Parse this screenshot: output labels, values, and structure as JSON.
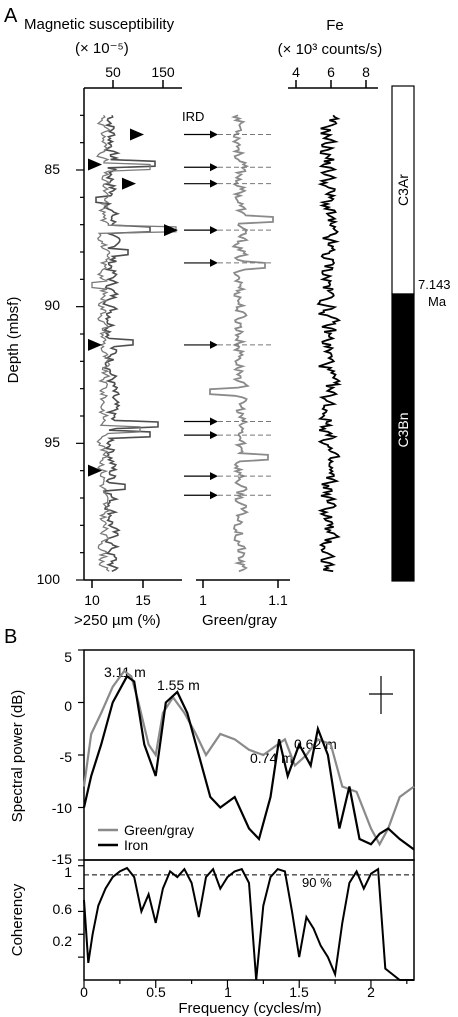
{
  "panel_a": {
    "label": "A",
    "mag_title": "Magnetic susceptibility",
    "mag_unit": "(× 10⁻⁵)",
    "mag_ticks": [
      "50",
      "150"
    ],
    "fe_title": "Fe",
    "fe_unit": "(× 10³ counts/s)",
    "fe_ticks": [
      "4",
      "6",
      "8"
    ],
    "depth_label": "Depth (mbsf)",
    "depth_ticks": [
      "85",
      "90",
      "95",
      "100"
    ],
    "ird_label": "IRD",
    "coarse_label": ">250 µm (%)",
    "coarse_ticks": [
      "10",
      "15"
    ],
    "greengray_label": "Green/gray",
    "greengray_ticks": [
      "1",
      "1.1"
    ],
    "chron_top": "C3Ar",
    "chron_bottom": "C3Bn",
    "boundary_age": "7.143",
    "boundary_unit": "Ma"
  },
  "panel_b": {
    "label": "B",
    "ylabel_power": "Spectral power (dB)",
    "ylabel_coh": "Coherency",
    "xlabel": "Frequency (cycles/m)",
    "power_ticks": [
      "5",
      "0",
      "-5",
      "-10",
      "-15"
    ],
    "coh_ticks": [
      "1",
      "0.6",
      "0.2"
    ],
    "coh_ticks_minor": [
      "0.8",
      "0.4"
    ],
    "x_ticks": [
      "0",
      "0.5",
      "1",
      "1.5",
      "2"
    ],
    "peak_labels": [
      "3.11 m",
      "1.55 m",
      "0.74 m",
      "0.62 m"
    ],
    "legend_greengray": "Green/gray",
    "legend_iron": "Iron",
    "confidence_label": "90 %"
  },
  "colors": {
    "greengray": "#8a8a8a",
    "iron": "#000000",
    "magsus": "#4d4d4d",
    "chron_normal": "#000000"
  },
  "chart_data": [
    {
      "type": "line",
      "panel": "A",
      "depth_range": [
        82,
        100
      ],
      "series": [
        {
          "name": "Magnetic susceptibility",
          "axis_range": [
            10,
            170
          ]
        },
        {
          "name": ">250 µm (%)",
          "axis_range": [
            9.5,
            19
          ],
          "ird_triangles_depth": [
            83.7,
            84.8,
            85.5,
            87.2,
            91.4,
            96
          ]
        },
        {
          "name": "Green/gray",
          "axis_range": [
            0.97,
            1.12
          ]
        },
        {
          "name": "Fe",
          "axis_range": [
            3,
            9
          ]
        }
      ],
      "ird_arrow_depths": [
        83.7,
        84.9,
        85.5,
        87.2,
        88.4,
        91.4,
        94.2,
        94.7,
        96.2,
        96.9
      ],
      "polarity": [
        {
          "name": "C3Ar",
          "from": 82,
          "to": 89.7,
          "polarity": "reversed"
        },
        {
          "name": "C3Bn",
          "from": 89.7,
          "to": 100,
          "polarity": "normal"
        }
      ],
      "boundary_age_ma": 7.143
    },
    {
      "type": "line",
      "panel": "B",
      "xlabel": "Frequency (cycles/m)",
      "ylabel": "Spectral power (dB)",
      "xlim": [
        0,
        2.3
      ],
      "ylim": [
        -15,
        5
      ],
      "series": [
        {
          "name": "Green/gray",
          "x": [
            0,
            0.05,
            0.12,
            0.2,
            0.28,
            0.33,
            0.38,
            0.45,
            0.5,
            0.55,
            0.62,
            0.7,
            0.78,
            0.85,
            0.95,
            1.05,
            1.15,
            1.25,
            1.35,
            1.4,
            1.47,
            1.55,
            1.63,
            1.72,
            1.8,
            1.9,
            2.0,
            2.06,
            2.12,
            2.2,
            2.3
          ],
          "values": [
            -8,
            -3,
            -1,
            1.5,
            3,
            2.5,
            0,
            -4,
            -5,
            -1,
            0.5,
            -1,
            -3,
            -5,
            -3,
            -3.5,
            -4.5,
            -5,
            -4,
            -3.5,
            -6,
            -5,
            -3.5,
            -4,
            -8,
            -8.5,
            -12,
            -13.5,
            -12,
            -9,
            -8
          ]
        },
        {
          "name": "Iron",
          "x": [
            0,
            0.05,
            0.12,
            0.2,
            0.3,
            0.35,
            0.42,
            0.5,
            0.57,
            0.65,
            0.72,
            0.8,
            0.88,
            0.95,
            1.05,
            1.15,
            1.22,
            1.3,
            1.36,
            1.42,
            1.5,
            1.58,
            1.63,
            1.7,
            1.78,
            1.85,
            1.92,
            2.0,
            2.06,
            2.12,
            2.2,
            2.3
          ],
          "values": [
            -10,
            -7,
            -4,
            0,
            2.5,
            2,
            -4,
            -7,
            0,
            1,
            -1,
            -5,
            -9,
            -10,
            -9,
            -12,
            -13,
            -9,
            -3.5,
            -7,
            -4,
            -6,
            -2.5,
            -5,
            -12,
            -8,
            -13,
            -13.5,
            -12.5,
            -12,
            -13,
            -14
          ]
        }
      ],
      "peaks": [
        {
          "label": "3.11 m",
          "frequency": 0.32
        },
        {
          "label": "1.55 m",
          "frequency": 0.65
        },
        {
          "label": "0.74 m",
          "frequency": 1.35
        },
        {
          "label": "0.62 m",
          "frequency": 1.62
        }
      ]
    },
    {
      "type": "line",
      "panel": "B",
      "xlabel": "Frequency (cycles/m)",
      "ylabel": "Coherency",
      "xlim": [
        0,
        2.3
      ],
      "ylim": [
        0,
        1.05
      ],
      "confidence_90": 0.92,
      "series": [
        {
          "name": "Coherency",
          "x": [
            0,
            0.03,
            0.06,
            0.1,
            0.15,
            0.2,
            0.25,
            0.3,
            0.35,
            0.4,
            0.45,
            0.5,
            0.55,
            0.6,
            0.65,
            0.7,
            0.75,
            0.8,
            0.85,
            0.9,
            0.95,
            1.0,
            1.05,
            1.1,
            1.15,
            1.2,
            1.25,
            1.3,
            1.35,
            1.4,
            1.45,
            1.5,
            1.55,
            1.6,
            1.65,
            1.7,
            1.75,
            1.8,
            1.85,
            1.9,
            1.95,
            2.0,
            2.05,
            2.1,
            2.2,
            2.3
          ],
          "values": [
            0.7,
            0.15,
            0.4,
            0.65,
            0.8,
            0.9,
            0.95,
            0.98,
            0.9,
            0.6,
            0.75,
            0.5,
            0.8,
            0.95,
            0.9,
            0.97,
            0.85,
            0.55,
            0.9,
            0.97,
            0.8,
            0.9,
            0.95,
            0.97,
            0.85,
            0.0,
            0.65,
            0.9,
            0.97,
            0.95,
            0.6,
            0.2,
            0.55,
            0.45,
            0.3,
            0.2,
            0.05,
            0.5,
            0.85,
            0.95,
            0.8,
            0.93,
            0.97,
            0.1,
            0.0,
            0.0
          ]
        }
      ]
    }
  ]
}
